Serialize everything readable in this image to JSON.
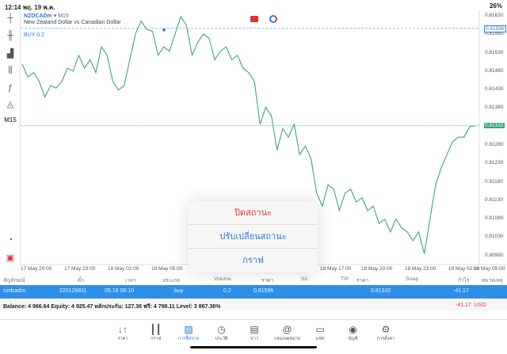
{
  "status": {
    "time": "12:14",
    "date": "พฤ. 19 พ.ค.",
    "battery": "26%"
  },
  "chart": {
    "symbol": "NZDCADm",
    "timeframe": "M15",
    "description": "New Zealand Dollar vs Canadian Dollar",
    "buy_label": "BUY 0.2",
    "tf_side": "M15"
  },
  "chart_data": {
    "type": "line",
    "color": "#3fa27f",
    "y_ticks": [
      "0.81630",
      "0.81580",
      "0.81530",
      "0.81480",
      "0.81430",
      "0.81380",
      "0.81280",
      "0.81230",
      "0.81180",
      "0.81130",
      "0.81080",
      "0.81030",
      "0.80980"
    ],
    "ylim": [
      0.8096,
      0.81645
    ],
    "x_ticks": [
      "17 May 20:00",
      "17 May 23:00",
      "18 May 02:00",
      "18 May 05:00",
      "18 May 17:00",
      "18 May 20:00",
      "18 May 23:00",
      "19 May 02:00",
      "19 May 05:00"
    ],
    "buy_price": "0.81596",
    "bid_price": "0.81332",
    "values": [
      0.81499,
      0.81464,
      0.81476,
      0.81452,
      0.8141,
      0.81441,
      0.81434,
      0.81452,
      0.81488,
      0.8148,
      0.81523,
      0.81488,
      0.81511,
      0.81476,
      0.81546,
      0.81523,
      0.81452,
      0.81429,
      0.81441,
      0.81511,
      0.81581,
      0.81616,
      0.81593,
      0.81588,
      0.81523,
      0.81546,
      0.81534,
      0.81581,
      0.81628,
      0.81604,
      0.81523,
      0.81558,
      0.81581,
      0.81569,
      0.81511,
      0.81534,
      0.81546,
      0.81511,
      0.81523,
      0.81488,
      0.81476,
      0.81452,
      0.81336,
      0.81382,
      0.81359,
      0.81266,
      0.81324,
      0.81301,
      0.81336,
      0.81254,
      0.81277,
      0.81242,
      0.81149,
      0.81114,
      0.81172,
      0.8116,
      0.81102,
      0.81149,
      0.8116,
      0.81125,
      0.81137,
      0.81102,
      0.81114,
      0.81067,
      0.81079,
      0.81044,
      0.81079,
      0.81055,
      0.81044,
      0.8102,
      0.81044,
      0.80985,
      0.81079,
      0.81172,
      0.81219,
      0.81254,
      0.81289,
      0.81301,
      0.81301,
      0.81329,
      0.81332
    ]
  },
  "popup": {
    "close": "ปิดสถานะ",
    "modify": "ปรับเปลี่ยนสถานะ",
    "chart": "กราฟ"
  },
  "table": {
    "headers": [
      "สัญลักษณ์",
      "ตั๋ว",
      "เวลา",
      "ประเภท",
      "Volume",
      "ราคา",
      "S/L",
      "T/P",
      "ราคา",
      "Swap",
      "กำไร",
      "หมายเหตุ"
    ],
    "row": {
      "symbol": "nzdcadm",
      "ticket": "220126811",
      "time": "05.18 06:10",
      "type": "buy",
      "volume": "0.2",
      "open": "0.81596",
      "current": "0.81332",
      "profit": "-41.17"
    }
  },
  "balance": {
    "text": "Balance: 4 966.64 Equity: 4 925.47 หลักประกัน: 127.36 ฟรี: 4 798.11 Level: 3 867.36%",
    "profit": "-41.17",
    "currency": "USD"
  },
  "nav": [
    {
      "label": "ราคา",
      "icon": "↓↑"
    },
    {
      "label": "กราฟ",
      "icon": "┃┃"
    },
    {
      "label": "การซื้อขาย",
      "icon": "▨"
    },
    {
      "label": "ประวัติ",
      "icon": "◷"
    },
    {
      "label": "ข่าว",
      "icon": "▤"
    },
    {
      "label": "กล่องจดหมาย",
      "icon": "@"
    },
    {
      "label": "แชท",
      "icon": "▭"
    },
    {
      "label": "บัญชี",
      "icon": "◉"
    },
    {
      "label": "การตั้งค่า",
      "icon": "⚙"
    }
  ]
}
